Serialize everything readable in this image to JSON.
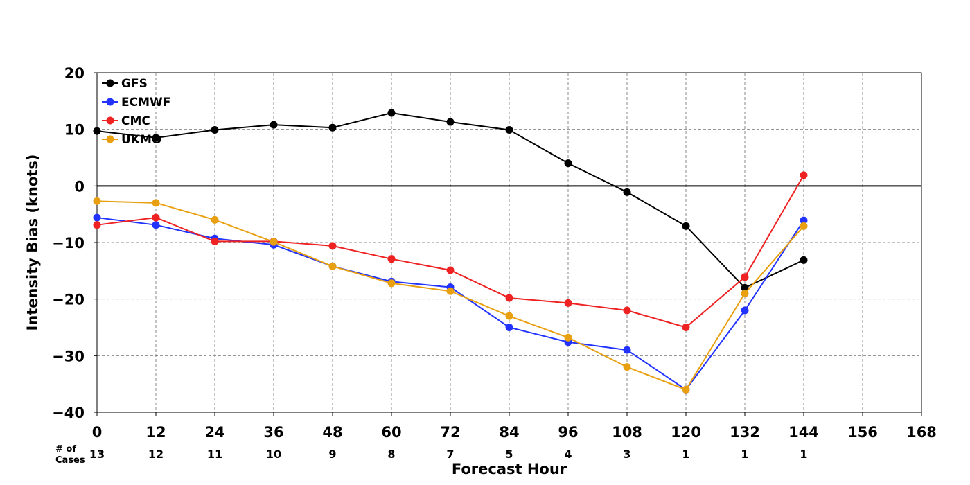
{
  "chart_data": {
    "type": "line",
    "xlabel": "Forecast Hour",
    "ylabel": "Intensity Bias (knots)",
    "xlim": [
      0,
      168
    ],
    "ylim": [
      -40,
      20
    ],
    "x_ticks": [
      "0",
      "12",
      "24",
      "36",
      "48",
      "60",
      "72",
      "84",
      "96",
      "108",
      "120",
      "132",
      "144",
      "156",
      "168"
    ],
    "y_ticks": [
      "20",
      "10",
      "0",
      "−10",
      "−20",
      "−30",
      "−40"
    ],
    "grid": true,
    "legend_position": "top-left",
    "cases_label": "# of\nCases",
    "cases": [
      {
        "x": 0,
        "n": "13"
      },
      {
        "x": 12,
        "n": "12"
      },
      {
        "x": 24,
        "n": "11"
      },
      {
        "x": 36,
        "n": "10"
      },
      {
        "x": 48,
        "n": "9"
      },
      {
        "x": 60,
        "n": "8"
      },
      {
        "x": 72,
        "n": "7"
      },
      {
        "x": 84,
        "n": "5"
      },
      {
        "x": 96,
        "n": "4"
      },
      {
        "x": 108,
        "n": "3"
      },
      {
        "x": 120,
        "n": "1"
      },
      {
        "x": 132,
        "n": "1"
      },
      {
        "x": 144,
        "n": "1"
      }
    ],
    "series": [
      {
        "name": "GFS",
        "color": "#000000",
        "x": [
          0,
          12,
          24,
          36,
          48,
          60,
          72,
          84,
          96,
          108,
          120,
          132,
          144
        ],
        "values": [
          9.7,
          8.5,
          9.9,
          10.8,
          10.3,
          12.9,
          11.3,
          9.9,
          4.0,
          -1.1,
          -7.1,
          -18.0,
          -13.1
        ]
      },
      {
        "name": "ECMWF",
        "color": "#2233ff",
        "x": [
          0,
          12,
          24,
          36,
          48,
          60,
          72,
          84,
          96,
          108,
          120,
          132,
          144
        ],
        "values": [
          -5.6,
          -6.9,
          -9.3,
          -10.4,
          -14.2,
          -16.9,
          -17.9,
          -25.0,
          -27.6,
          -29.0,
          -36.0,
          -22.0,
          -6.1
        ]
      },
      {
        "name": "CMC",
        "color": "#ee2222",
        "x": [
          0,
          12,
          24,
          36,
          48,
          60,
          72,
          84,
          96,
          108,
          120,
          132,
          144
        ],
        "values": [
          -6.9,
          -5.6,
          -9.8,
          -9.8,
          -10.6,
          -12.9,
          -14.9,
          -19.8,
          -20.7,
          -22.0,
          -25.0,
          -16.1,
          1.9
        ]
      },
      {
        "name": "UKMO",
        "color": "#e8a010",
        "x": [
          0,
          12,
          24,
          36,
          48,
          60,
          72,
          84,
          96,
          108,
          120,
          132,
          144
        ],
        "values": [
          -2.7,
          -3.0,
          -6.0,
          -9.9,
          -14.2,
          -17.2,
          -18.6,
          -23.0,
          -26.8,
          -32.0,
          -36.0,
          -19.0,
          -7.1
        ]
      }
    ]
  }
}
